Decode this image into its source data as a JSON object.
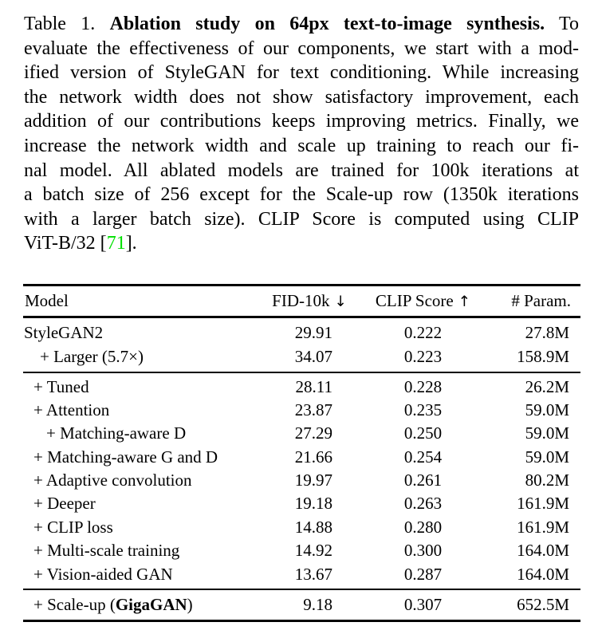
{
  "page": {
    "background": "#ffffff",
    "text_color": "#000000",
    "cite_color": "#00e000",
    "rule_color": "#000000"
  },
  "caption": {
    "lines": [
      {
        "justify": true,
        "segments": [
          {
            "text": "Table 1. ",
            "style": "normal"
          },
          {
            "text": "Ablation study on 64px text-to-image synthesis.",
            "style": "bold"
          },
          {
            "text": " To",
            "style": "normal"
          }
        ]
      },
      {
        "justify": true,
        "segments": [
          {
            "text": "evaluate the effectiveness of our components, we start with a mod-",
            "style": "normal"
          }
        ]
      },
      {
        "justify": true,
        "segments": [
          {
            "text": "ified version of StyleGAN for text conditioning. While increasing",
            "style": "normal"
          }
        ]
      },
      {
        "justify": true,
        "segments": [
          {
            "text": "the network width does not show satisfactory improvement, each",
            "style": "normal"
          }
        ]
      },
      {
        "justify": true,
        "segments": [
          {
            "text": "addition of our contributions keeps improving metrics. Finally, we",
            "style": "normal"
          }
        ]
      },
      {
        "justify": true,
        "segments": [
          {
            "text": "increase the network width and scale up training to reach our fi-",
            "style": "normal"
          }
        ]
      },
      {
        "justify": true,
        "segments": [
          {
            "text": "nal model. All ablated models are trained for 100k iterations at",
            "style": "normal"
          }
        ]
      },
      {
        "justify": true,
        "segments": [
          {
            "text": "a batch size of 256 except for the Scale-up row (1350k iterations",
            "style": "normal"
          }
        ]
      },
      {
        "justify": true,
        "segments": [
          {
            "text": "with a larger batch size). CLIP Score is computed using CLIP",
            "style": "normal"
          }
        ]
      },
      {
        "justify": false,
        "segments": [
          {
            "text": "ViT-B/32 [",
            "style": "normal"
          },
          {
            "text": "71",
            "style": "cite"
          },
          {
            "text": "].",
            "style": "normal"
          }
        ]
      }
    ]
  },
  "table": {
    "columns": [
      {
        "label": "Model",
        "arrow": ""
      },
      {
        "label": "FID-10k",
        "arrow": "↓"
      },
      {
        "label": "CLIP Score",
        "arrow": "↑"
      },
      {
        "label": "# Param.",
        "arrow": ""
      }
    ],
    "sections": [
      {
        "rows": [
          {
            "label": "StyleGAN2",
            "indent": 0,
            "fid": "29.91",
            "clip": "0.222",
            "param": "27.8M"
          },
          {
            "label": "+ Larger (5.7×)",
            "indent": 2,
            "fid": "34.07",
            "clip": "0.223",
            "param": "158.9M"
          }
        ]
      },
      {
        "rows": [
          {
            "label": "+ Tuned",
            "indent": 1,
            "fid": "28.11",
            "clip": "0.228",
            "param": "26.2M"
          },
          {
            "label": "+ Attention",
            "indent": 1,
            "fid": "23.87",
            "clip": "0.235",
            "param": "59.0M"
          },
          {
            "label": "+ Matching-aware D",
            "indent": 3,
            "fid": "27.29",
            "clip": "0.250",
            "param": "59.0M"
          },
          {
            "label": "+ Matching-aware G and D",
            "indent": 1,
            "fid": "21.66",
            "clip": "0.254",
            "param": "59.0M"
          },
          {
            "label": "+ Adaptive convolution",
            "indent": 1,
            "fid": "19.97",
            "clip": "0.261",
            "param": "80.2M"
          },
          {
            "label": "+ Deeper",
            "indent": 1,
            "fid": "19.18",
            "clip": "0.263",
            "param": "161.9M"
          },
          {
            "label": "+ CLIP loss",
            "indent": 1,
            "fid": "14.88",
            "clip": "0.280",
            "param": "161.9M"
          },
          {
            "label": "+ Multi-scale training",
            "indent": 1,
            "fid": "14.92",
            "clip": "0.300",
            "param": "164.0M"
          },
          {
            "label": "+ Vision-aided GAN",
            "indent": 1,
            "fid": "13.67",
            "clip": "0.287",
            "param": "164.0M"
          }
        ]
      },
      {
        "rows": [
          {
            "label": "+ Scale-up (",
            "label_bold": "GigaGAN",
            "label_after": ")",
            "indent": 1,
            "fid": "9.18",
            "clip": "0.307",
            "param": "652.5M"
          }
        ]
      }
    ]
  }
}
